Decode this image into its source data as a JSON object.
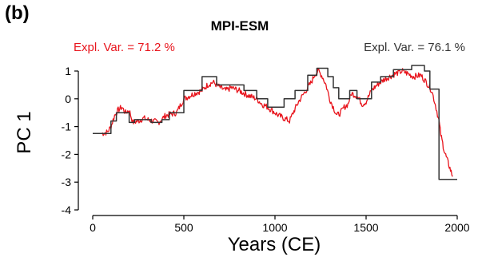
{
  "chart_data": {
    "type": "line",
    "panel_label": "(b)",
    "title": "MPI-ESM",
    "xlabel": "Years (CE)",
    "ylabel": "PC 1",
    "xlim": [
      0,
      2000
    ],
    "ylim": [
      -4,
      1.2
    ],
    "xticks": [
      0,
      500,
      1000,
      1500,
      2000
    ],
    "yticks": [
      -4,
      -3,
      -2,
      -1,
      0,
      1
    ],
    "grid": false,
    "annotations": [
      {
        "text": "Expl. Var. = 71.2 %",
        "color": "#e8141c",
        "position": "top-left"
      },
      {
        "text": "Expl. Var. = 76.1 %",
        "color": "#333333",
        "position": "top-right"
      }
    ],
    "series": [
      {
        "color": "#e8141c",
        "style": "noisy-line",
        "x": [
          50,
          80,
          100,
          120,
          140,
          160,
          180,
          200,
          220,
          250,
          280,
          300,
          330,
          360,
          400,
          430,
          460,
          500,
          530,
          560,
          600,
          630,
          660,
          700,
          730,
          760,
          800,
          830,
          860,
          900,
          930,
          960,
          1000,
          1020,
          1050,
          1080,
          1100,
          1130,
          1150,
          1170,
          1200,
          1220,
          1240,
          1260,
          1280,
          1300,
          1320,
          1340,
          1360,
          1380,
          1400,
          1420,
          1450,
          1480,
          1500,
          1530,
          1560,
          1600,
          1630,
          1660,
          1700,
          1730,
          1760,
          1800,
          1830,
          1860,
          1880,
          1900,
          1910,
          1920,
          1930,
          1940,
          1950,
          1960,
          1970,
          1975
        ],
        "y": [
          -1.25,
          -1.2,
          -1.0,
          -0.6,
          -0.4,
          -0.3,
          -0.5,
          -0.4,
          -0.85,
          -0.8,
          -0.7,
          -0.75,
          -0.8,
          -0.85,
          -0.6,
          -0.55,
          -0.5,
          0.0,
          0.1,
          0.2,
          0.3,
          0.5,
          0.6,
          0.4,
          0.3,
          0.4,
          0.3,
          0.2,
          0.1,
          0.0,
          -0.2,
          -0.3,
          -0.5,
          -0.6,
          -0.7,
          -0.8,
          -0.5,
          -0.1,
          0.1,
          0.3,
          0.6,
          0.9,
          1.0,
          0.8,
          0.5,
          0.0,
          -0.3,
          -0.6,
          -0.5,
          -0.3,
          -0.2,
          0.2,
          0.1,
          -0.2,
          -0.1,
          0.3,
          0.5,
          0.7,
          0.8,
          0.9,
          1.0,
          0.9,
          0.8,
          0.85,
          0.6,
          0.3,
          -0.2,
          -0.8,
          -1.3,
          -1.6,
          -1.9,
          -2.1,
          -2.3,
          -2.5,
          -2.7,
          -2.8
        ]
      },
      {
        "color": "#333333",
        "style": "step-line",
        "x": [
          0,
          100,
          100,
          130,
          130,
          200,
          200,
          230,
          230,
          320,
          320,
          380,
          380,
          420,
          420,
          500,
          500,
          600,
          600,
          680,
          680,
          830,
          830,
          900,
          900,
          960,
          960,
          1050,
          1050,
          1110,
          1110,
          1180,
          1180,
          1230,
          1230,
          1290,
          1290,
          1320,
          1320,
          1350,
          1350,
          1410,
          1410,
          1450,
          1450,
          1530,
          1530,
          1580,
          1580,
          1650,
          1650,
          1750,
          1750,
          1800,
          1800,
          1820,
          1820,
          1850,
          1850,
          1900,
          1900,
          1920,
          1920,
          2000
        ],
        "y": [
          -1.25,
          -1.25,
          -0.8,
          -0.8,
          -0.5,
          -0.5,
          -0.85,
          -0.85,
          -0.75,
          -0.75,
          -0.85,
          -0.85,
          -0.75,
          -0.75,
          -0.5,
          -0.5,
          0.3,
          0.3,
          0.8,
          0.8,
          0.5,
          0.5,
          0.3,
          0.3,
          0.0,
          0.0,
          -0.3,
          -0.3,
          0.0,
          0.0,
          0.3,
          0.3,
          0.85,
          0.85,
          1.1,
          1.1,
          0.8,
          0.8,
          0.4,
          0.4,
          0.0,
          0.0,
          0.3,
          0.3,
          0.0,
          0.0,
          0.6,
          0.6,
          0.8,
          0.8,
          1.05,
          1.05,
          1.2,
          1.2,
          1.2,
          1.2,
          1.0,
          1.0,
          0.35,
          0.35,
          -2.9,
          -2.9,
          -2.9,
          -2.9
        ]
      }
    ]
  }
}
